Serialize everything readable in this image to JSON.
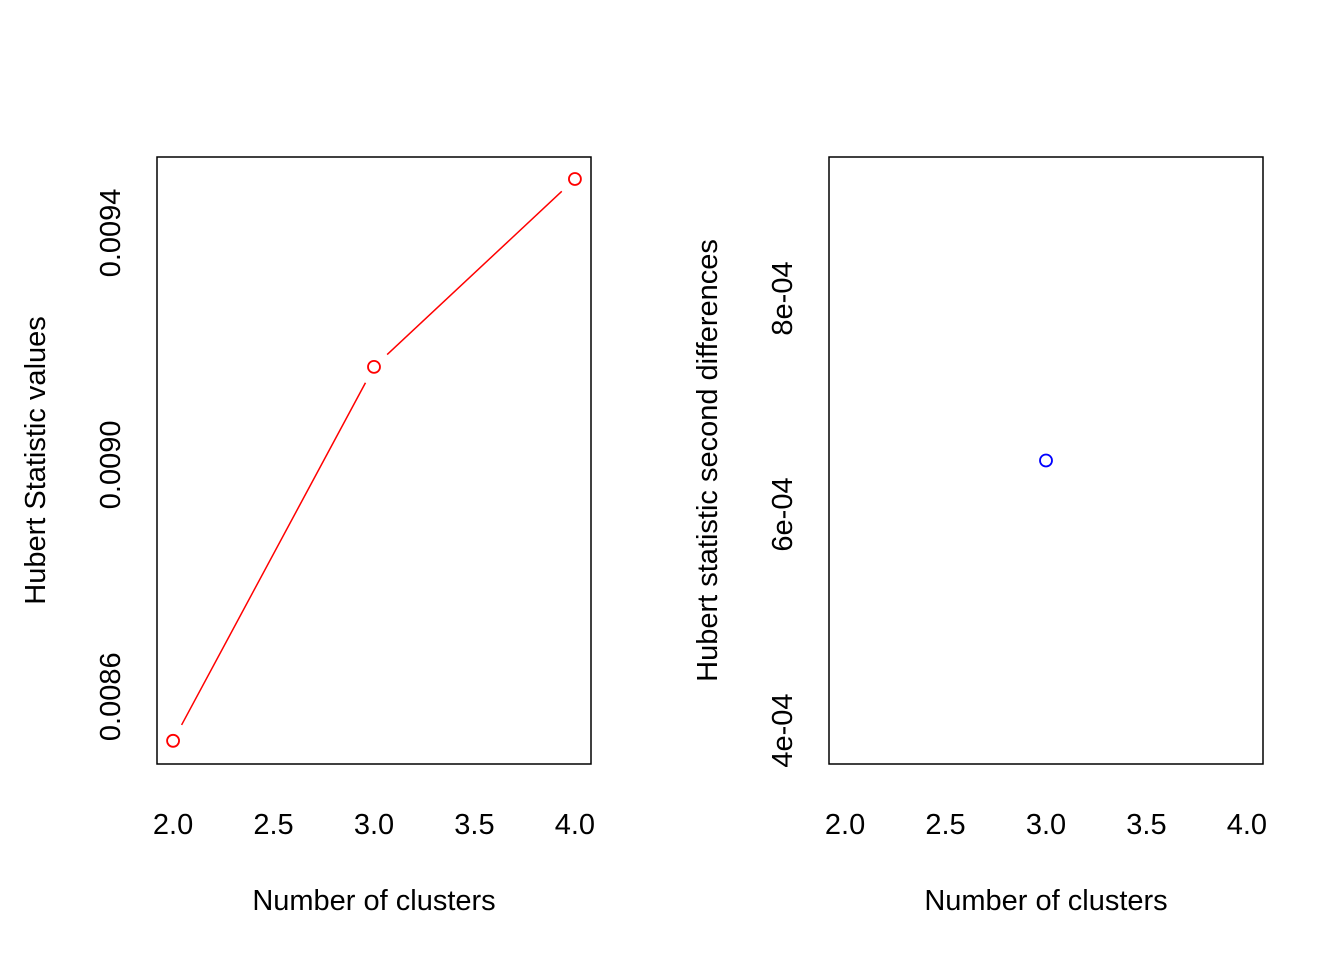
{
  "chart_data": [
    {
      "type": "line",
      "title": "",
      "xlabel": "Number of clusters",
      "ylabel": "Hubert Statistic values",
      "x": [
        2,
        3,
        4
      ],
      "values": [
        0.008524,
        0.009169,
        0.009493
      ],
      "xlim": [
        1.92,
        4.08
      ],
      "ylim": [
        0.008484,
        0.009531
      ],
      "xticks": [
        2.0,
        2.5,
        3.0,
        3.5,
        4.0
      ],
      "xtick_labels": [
        "2.0",
        "2.5",
        "3.0",
        "3.5",
        "4.0"
      ],
      "yticks": [
        0.0086,
        0.009,
        0.0094
      ],
      "ytick_labels": [
        "0.0086",
        "0.0090",
        "0.0094"
      ],
      "color": "#FF0000",
      "marker": "open-circle",
      "grid": false
    },
    {
      "type": "scatter",
      "title": "",
      "xlabel": "Number of clusters",
      "ylabel": "Hubert statistic second differences",
      "x": [
        3
      ],
      "values": [
        0.00065
      ],
      "xlim": [
        1.92,
        4.08
      ],
      "ylim": [
        0.000369,
        0.000931
      ],
      "xticks": [
        2.0,
        2.5,
        3.0,
        3.5,
        4.0
      ],
      "xtick_labels": [
        "2.0",
        "2.5",
        "3.0",
        "3.5",
        "4.0"
      ],
      "yticks": [
        0.0004,
        0.0006,
        0.0008
      ],
      "ytick_labels": [
        "4e-04",
        "6e-04",
        "8e-04"
      ],
      "color": "#0000FF",
      "marker": "open-circle",
      "grid": false
    }
  ]
}
